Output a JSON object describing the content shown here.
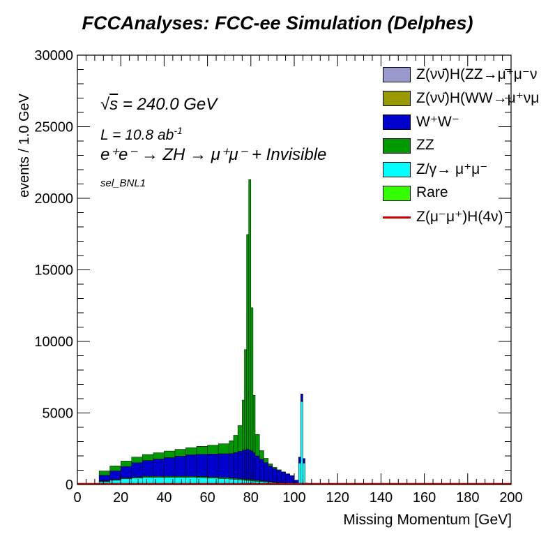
{
  "chart_data": {
    "type": "bar",
    "title": "FCCAnalyses: FCC-ee Simulation (Delphes)",
    "xlabel": "Missing Momentum [GeV]",
    "ylabel": "events / 1.0 GeV",
    "xlim": [
      0,
      200
    ],
    "ylim": [
      0,
      30000
    ],
    "x_ticks": [
      "0",
      "20",
      "40",
      "60",
      "80",
      "100",
      "120",
      "140",
      "160",
      "180",
      "200"
    ],
    "y_ticks": [
      "0",
      "5000",
      "10000",
      "15000",
      "20000",
      "25000",
      "30000"
    ],
    "annotations": {
      "sqrt_s": "= 240.0 GeV",
      "lumi": "L = 10.8 ab",
      "lumi_exp": "-1",
      "process": "e⁺e⁻ → ZH → μ⁺μ⁻ + Invisible",
      "selection": "sel_BNL1"
    },
    "stacked": true,
    "bin_edges_x": [
      10,
      15,
      20,
      25,
      30,
      35,
      40,
      45,
      50,
      55,
      60,
      65,
      70,
      72,
      74,
      76,
      77,
      78,
      79,
      80,
      81,
      82,
      84,
      86,
      88,
      90,
      92,
      94,
      96,
      98,
      100,
      102,
      103,
      104,
      105,
      106
    ],
    "series": [
      {
        "name": "Z/γ→ μ⁺μ⁻",
        "color": "#00ffff",
        "values": [
          200,
          300,
          400,
          450,
          500,
          500,
          500,
          500,
          500,
          480,
          450,
          420,
          380,
          360,
          340,
          320,
          300,
          290,
          280,
          270,
          250,
          230,
          210,
          180,
          160,
          140,
          120,
          100,
          80,
          60,
          100,
          1500,
          5800,
          1500,
          100
        ]
      },
      {
        "name": "ZZ",
        "color": "#009900",
        "values": [
          50,
          50,
          60,
          70,
          80,
          80,
          80,
          80,
          80,
          80,
          80,
          80,
          80,
          80,
          80,
          80,
          80,
          80,
          80,
          80,
          80,
          70,
          60,
          50,
          40,
          30,
          20,
          15,
          10,
          10,
          10,
          20,
          30,
          20,
          5
        ]
      },
      {
        "name": "W⁺W⁻",
        "color": "#0000cc",
        "values": [
          400,
          600,
          800,
          1000,
          1100,
          1200,
          1300,
          1400,
          1500,
          1550,
          1600,
          1650,
          1700,
          1800,
          1900,
          2000,
          2050,
          2100,
          2050,
          2000,
          1900,
          1700,
          1500,
          1300,
          1100,
          950,
          850,
          750,
          650,
          550,
          200,
          400,
          500,
          300,
          0
        ]
      },
      {
        "name": "ZZ",
        "color": "#009900",
        "values": [
          300,
          350,
          380,
          400,
          420,
          440,
          460,
          480,
          500,
          560,
          620,
          700,
          900,
          1200,
          1800,
          3500,
          7000,
          15000,
          18900,
          10000,
          4000,
          1500,
          600,
          300,
          150,
          80,
          40,
          20,
          10,
          5,
          0,
          0,
          0,
          0,
          0
        ]
      }
    ],
    "legend": [
      {
        "label": "Z(νν̄)H(ZZ→μ⁺μ⁻ν",
        "color": "#9999cc",
        "kind": "box"
      },
      {
        "label": "Z(νν̄)H(WW→μ⁺νμ",
        "color": "#999900",
        "kind": "box"
      },
      {
        "label": "W⁺W⁻",
        "color": "#0000cc",
        "kind": "box"
      },
      {
        "label": "ZZ",
        "color": "#009900",
        "kind": "box"
      },
      {
        "label": "Z/γ→ μ⁺μ⁻",
        "color": "#00ffff",
        "kind": "box"
      },
      {
        "label": "Rare",
        "color": "#33ff00",
        "kind": "box"
      },
      {
        "label": "Z(μ⁻μ⁺)H(4ν)",
        "color": "#cc0000",
        "kind": "line"
      }
    ],
    "legend_position": "top-right"
  }
}
